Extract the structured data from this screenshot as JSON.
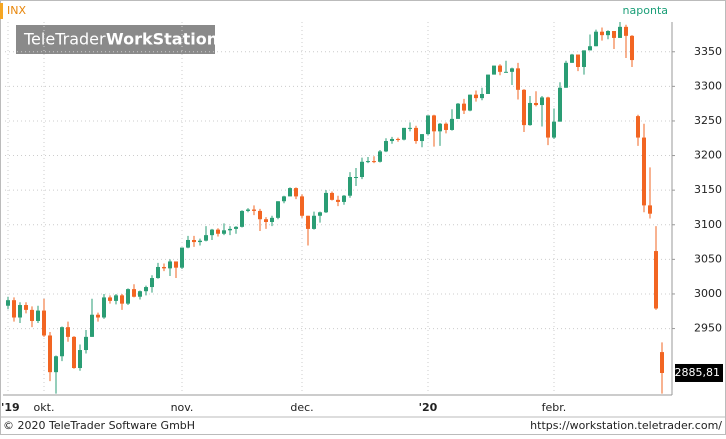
{
  "header": {
    "symbol": "INX",
    "period": "naponta"
  },
  "watermark": {
    "brand": "TeleTrader",
    "product": "WorkStation"
  },
  "footer": {
    "copyright": "© 2020 TeleTrader Software GmbH",
    "url": "https://workstation.teletrader.com/"
  },
  "chart_data": {
    "type": "candlestick",
    "categories": [
      "'19",
      null,
      null,
      null,
      null,
      null,
      "okt.",
      null,
      null,
      null,
      null,
      null,
      null,
      null,
      null,
      null,
      null,
      null,
      null,
      null,
      null,
      null,
      null,
      null,
      null,
      null,
      null,
      null,
      null,
      "nov.",
      null,
      null,
      null,
      null,
      null,
      null,
      null,
      null,
      null,
      null,
      null,
      null,
      null,
      null,
      null,
      null,
      null,
      null,
      null,
      "dec.",
      null,
      null,
      null,
      null,
      null,
      null,
      null,
      null,
      null,
      null,
      null,
      null,
      null,
      null,
      null,
      null,
      null,
      null,
      null,
      null,
      "'20",
      null,
      null,
      null,
      null,
      null,
      null,
      null,
      null,
      null,
      null,
      null,
      null,
      null,
      null,
      null,
      null,
      null,
      null,
      null,
      null,
      "febr.",
      null,
      null,
      null,
      null,
      null,
      null,
      null,
      null,
      null,
      null,
      null,
      null,
      null,
      null,
      null,
      null,
      null,
      null
    ],
    "open": [
      2983,
      2991,
      2966,
      2984,
      2977,
      2961,
      2976,
      2940,
      2887,
      2910,
      2952,
      2938,
      2893,
      2919,
      2938,
      2970,
      2966,
      2995,
      2990,
      2998,
      2986,
      3007,
      2996,
      3004,
      3010,
      3023,
      3039,
      3037,
      3047,
      3038,
      3067,
      3078,
      3075,
      3077,
      3085,
      3093,
      3087,
      3092,
      3094,
      3097,
      3120,
      3122,
      3120,
      3108,
      3104,
      3110,
      3134,
      3141,
      3153,
      3141,
      3113,
      3094,
      3113,
      3118,
      3146,
      3136,
      3133,
      3142,
      3169,
      3169,
      3191,
      3192,
      3191,
      3206,
      3221,
      3224,
      3223,
      3240,
      3240,
      3221,
      3231,
      3258,
      3235,
      3246,
      3237,
      3253,
      3275,
      3265,
      3288,
      3283,
      3289,
      3317,
      3330,
      3321,
      3321,
      3326,
      3295,
      3244,
      3276,
      3273,
      3284,
      3226,
      3249,
      3298,
      3334,
      3346,
      3328,
      3352,
      3358,
      3379,
      3374,
      3380,
      3370,
      3386,
      3373,
      3257,
      3226,
      3128,
      3062,
      2916
    ],
    "high": [
      2996,
      2995,
      2988,
      2988,
      2982,
      2983,
      2993,
      2945,
      2911,
      2953,
      2960,
      2939,
      2927,
      2948,
      2993,
      2973,
      3000,
      2998,
      3000,
      3000,
      3008,
      3014,
      3005,
      3012,
      3027,
      3045,
      3044,
      3050,
      3047,
      3067,
      3084,
      3084,
      3080,
      3098,
      3094,
      3095,
      3102,
      3098,
      3098,
      3121,
      3124,
      3128,
      3123,
      3111,
      3113,
      3134,
      3142,
      3154,
      3154,
      3144,
      3113,
      3119,
      3119,
      3150,
      3148,
      3142,
      3143,
      3176,
      3182,
      3197,
      3198,
      3199,
      3208,
      3225,
      3227,
      3226,
      3240,
      3248,
      3243,
      3231,
      3258,
      3259,
      3247,
      3248,
      3267,
      3276,
      3282,
      3288,
      3294,
      3298,
      3317,
      3330,
      3332,
      3337,
      3327,
      3334,
      3296,
      3286,
      3293,
      3286,
      3285,
      3268,
      3306,
      3337,
      3347,
      3346,
      3352,
      3375,
      3382,
      3385,
      3381,
      3380,
      3393,
      3389,
      3374,
      3259,
      3246,
      3183,
      3098,
      2930
    ],
    "low": [
      2978,
      2960,
      2958,
      2972,
      2952,
      2958,
      2938,
      2874,
      2856,
      2903,
      2931,
      2892,
      2889,
      2914,
      2938,
      2960,
      2964,
      2986,
      2985,
      2977,
      2984,
      2995,
      2992,
      2998,
      3002,
      3022,
      3033,
      3026,
      3023,
      3036,
      3066,
      3068,
      3070,
      3076,
      3078,
      3083,
      3085,
      3085,
      3087,
      3096,
      3118,
      3114,
      3091,
      3094,
      3098,
      3108,
      3131,
      3141,
      3137,
      3110,
      3070,
      3093,
      3103,
      3117,
      3135,
      3127,
      3129,
      3139,
      3156,
      3166,
      3189,
      3189,
      3190,
      3205,
      3217,
      3220,
      3222,
      3235,
      3217,
      3212,
      3229,
      3213,
      3214,
      3232,
      3236,
      3253,
      3260,
      3264,
      3278,
      3280,
      3289,
      3317,
      3316,
      3320,
      3302,
      3281,
      3234,
      3243,
      3271,
      3242,
      3215,
      3224,
      3249,
      3298,
      3334,
      3322,
      3317,
      3352,
      3358,
      3366,
      3368,
      3354,
      3370,
      3341,
      3328,
      3214,
      3118,
      3109,
      2977,
      2856
    ],
    "close": [
      2991,
      2966,
      2984,
      2977,
      2961,
      2976,
      2940,
      2887,
      2910,
      2952,
      2938,
      2893,
      2919,
      2938,
      2970,
      2966,
      2995,
      2990,
      2998,
      2986,
      3007,
      2996,
      3004,
      3010,
      3023,
      3039,
      3037,
      3047,
      3038,
      3067,
      3078,
      3075,
      3077,
      3085,
      3093,
      3087,
      3092,
      3094,
      3097,
      3120,
      3122,
      3120,
      3108,
      3104,
      3110,
      3134,
      3141,
      3153,
      3141,
      3113,
      3094,
      3113,
      3118,
      3146,
      3136,
      3133,
      3142,
      3169,
      3169,
      3191,
      3192,
      3191,
      3206,
      3221,
      3224,
      3223,
      3240,
      3240,
      3221,
      3231,
      3258,
      3235,
      3246,
      3237,
      3253,
      3275,
      3265,
      3288,
      3283,
      3289,
      3317,
      3330,
      3321,
      3321,
      3326,
      3295,
      3244,
      3276,
      3273,
      3284,
      3226,
      3249,
      3298,
      3334,
      3346,
      3328,
      3352,
      3358,
      3379,
      3374,
      3380,
      3370,
      3386,
      3373,
      3338,
      3226,
      3128,
      3116,
      2979,
      2885.81
    ],
    "up_color": "#2a9d74",
    "down_color": "#f26522",
    "ylim": [
      2854,
      3393
    ],
    "yticks": [
      2950,
      3000,
      3050,
      3100,
      3150,
      3200,
      3250,
      3300,
      3350
    ],
    "grid": true,
    "last_value": 2885.81,
    "last_value_label": "2885,81"
  }
}
